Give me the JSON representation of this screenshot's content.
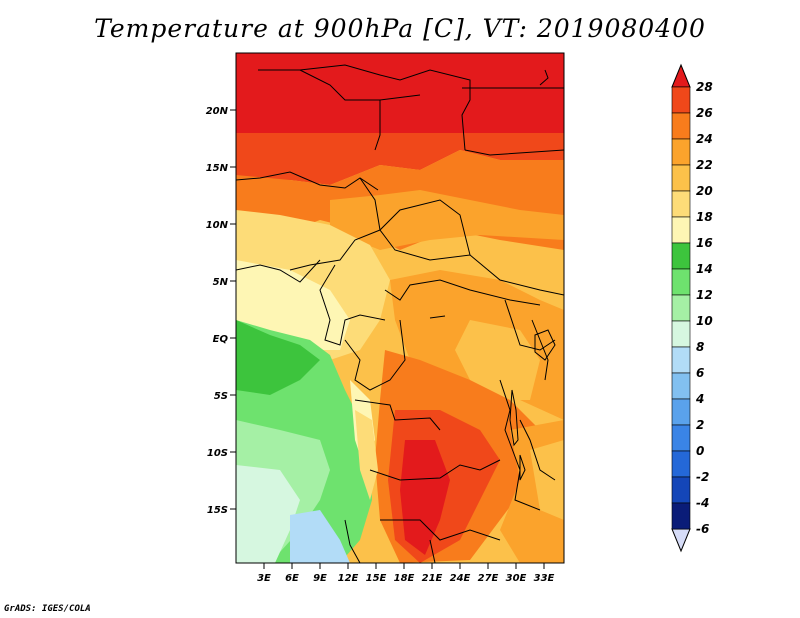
{
  "map": {
    "title": "Temperature at 900hPa [C], VT: 2019080400",
    "credit": "GrADS: IGES/COLA",
    "lat_ticks": [
      "20N",
      "15N",
      "10N",
      "5N",
      "EQ",
      "5S",
      "10S",
      "15S"
    ],
    "lon_ticks": [
      "3E",
      "6E",
      "9E",
      "12E",
      "15E",
      "18E",
      "21E",
      "24E",
      "27E",
      "30E",
      "33E"
    ]
  },
  "colorbar": {
    "labels": [
      "28",
      "26",
      "24",
      "22",
      "20",
      "18",
      "16",
      "14",
      "12",
      "10",
      "8",
      "6",
      "4",
      "2",
      "0",
      "-2",
      "-4",
      "-6"
    ],
    "colors": [
      "#e31a1c",
      "#f0481a",
      "#f87c1c",
      "#fba32c",
      "#fcc14a",
      "#fddc78",
      "#fef6b4",
      "#3dc43d",
      "#6ee26e",
      "#a5f0a5",
      "#d6f7e0",
      "#b2dcf7",
      "#82c0f0",
      "#5aa2ec",
      "#3a84e6",
      "#2468d8",
      "#1446b8",
      "#0a1c78"
    ],
    "over_color": "#e31a1c",
    "under_color": "#d6dcf7"
  }
}
